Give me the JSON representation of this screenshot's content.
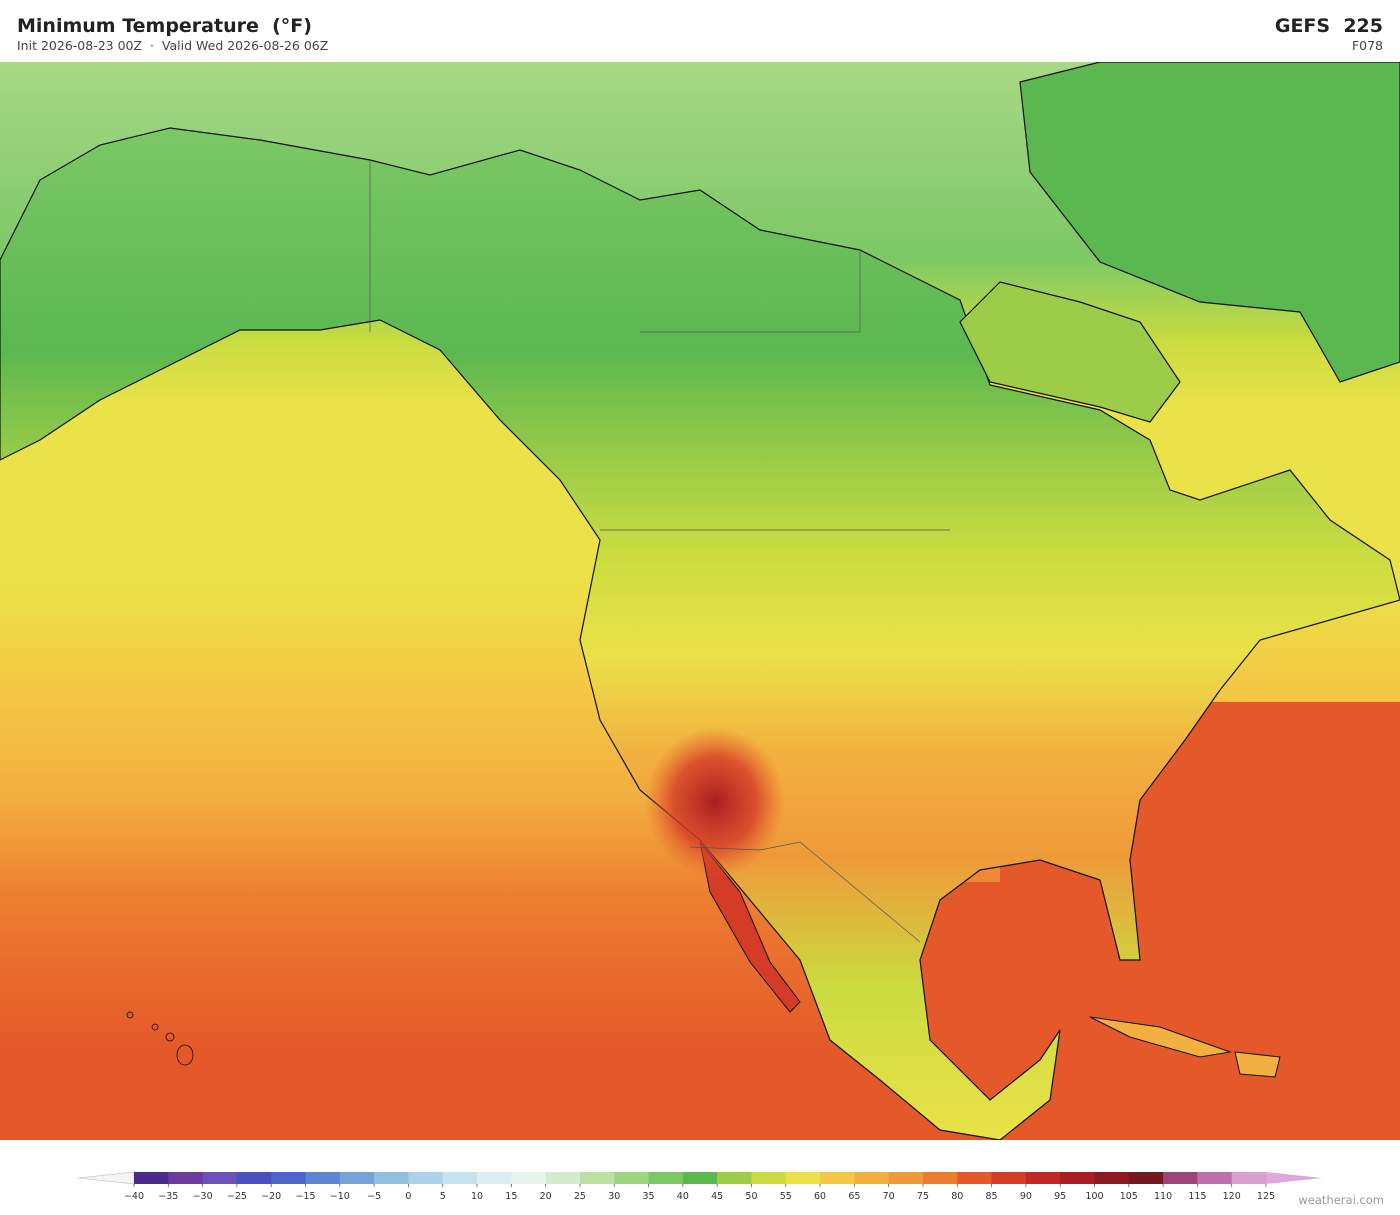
{
  "header": {
    "title": "Minimum Temperature  (°F)",
    "subtitle": "Init 2026-08-23 00Z  ·  Valid Wed 2026-08-26 06Z",
    "model": "GEFS  225",
    "forecast_hour": "F078"
  },
  "colorbar": {
    "ticks": [
      {
        "value": -40,
        "label": "−40"
      },
      {
        "value": -35,
        "label": "−35"
      },
      {
        "value": -30,
        "label": "−30"
      },
      {
        "value": -25,
        "label": "−25"
      },
      {
        "value": -20,
        "label": "−20"
      },
      {
        "value": -15,
        "label": "−15"
      },
      {
        "value": -10,
        "label": "−10"
      },
      {
        "value": -5,
        "label": "−5"
      },
      0,
      5,
      10,
      15,
      20,
      25,
      30,
      35,
      40,
      45,
      50,
      55,
      60,
      65,
      70,
      75,
      80,
      85,
      90,
      95,
      100,
      105,
      110,
      115,
      120,
      125
    ],
    "colors": [
      "#4a2a8a",
      "#6a3c9e",
      "#6c4fb8",
      "#4b4fc4",
      "#4e64cc",
      "#5c86d2",
      "#76a2d8",
      "#92bee2",
      "#aad2ea",
      "#c6e2f0",
      "#dcedf3",
      "#e8f4ec",
      "#d4ecce",
      "#bce0a2",
      "#9ed680",
      "#7cc866",
      "#5bb850",
      "#9ccc48",
      "#cadc40",
      "#eae248",
      "#f4c844",
      "#f2b040",
      "#ef9a3a",
      "#ec7c30",
      "#e4582a",
      "#d43c28",
      "#c02826",
      "#a81e22",
      "#8c1820",
      "#741820",
      "#9c4478",
      "#c070a8",
      "#d8a0cc"
    ],
    "under_color": "#f4f4f4",
    "over_color": "#e0a8d8"
  },
  "watermark": "weatherai.com"
}
